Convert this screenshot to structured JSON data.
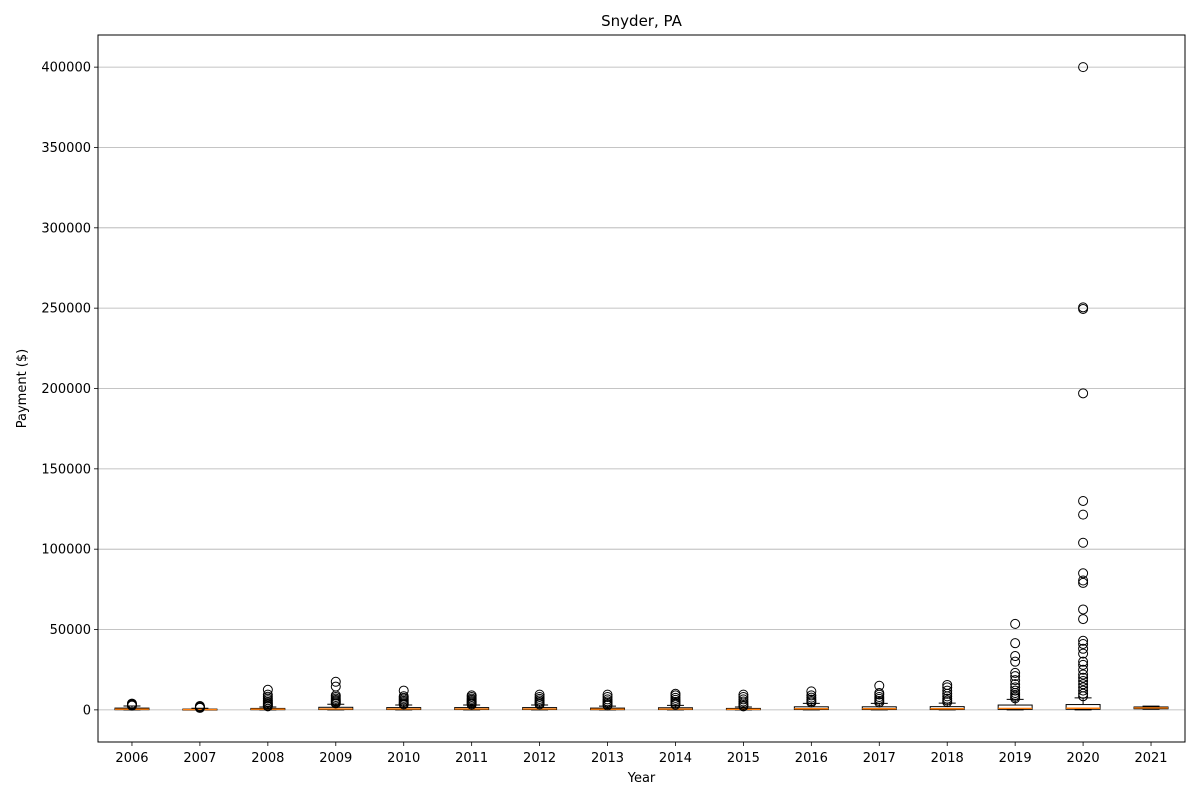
{
  "chart_data": {
    "type": "box",
    "title": "Snyder, PA",
    "xlabel": "Year",
    "ylabel": "Payment ($)",
    "ylim": [
      -20000,
      420000
    ],
    "yticks": [
      0,
      50000,
      100000,
      150000,
      200000,
      250000,
      300000,
      350000,
      400000
    ],
    "grid": "y",
    "colors": {
      "box": "#000000",
      "median": "#ff7f0e",
      "grid": "#b0b0b0"
    },
    "categories": [
      "2006",
      "2007",
      "2008",
      "2009",
      "2010",
      "2011",
      "2012",
      "2013",
      "2014",
      "2015",
      "2016",
      "2017",
      "2018",
      "2019",
      "2020",
      "2021"
    ],
    "boxes": [
      {
        "year": "2006",
        "q1": 100,
        "median": 400,
        "q3": 1100,
        "whisker_low": 0,
        "whisker_high": 2400,
        "outliers": [
          2600,
          2900,
          3200,
          3500,
          3900
        ]
      },
      {
        "year": "2007",
        "q1": 50,
        "median": 200,
        "q3": 500,
        "whisker_low": 0,
        "whisker_high": 1000,
        "outliers": [
          1200,
          1500,
          1900,
          2400
        ]
      },
      {
        "year": "2008",
        "q1": 100,
        "median": 400,
        "q3": 900,
        "whisker_low": 0,
        "whisker_high": 1800,
        "outliers": [
          2200,
          2800,
          3500,
          4200,
          5000,
          6000,
          7000,
          8200,
          9500,
          12500
        ]
      },
      {
        "year": "2009",
        "q1": 200,
        "median": 600,
        "q3": 1600,
        "whisker_low": 0,
        "whisker_high": 3500,
        "outliers": [
          4000,
          4700,
          5400,
          6100,
          7000,
          8000,
          9000,
          14500,
          17500
        ]
      },
      {
        "year": "2010",
        "q1": 200,
        "median": 600,
        "q3": 1400,
        "whisker_low": 0,
        "whisker_high": 3000,
        "outliers": [
          3400,
          4000,
          4800,
          5600,
          6500,
          7500,
          8500,
          12000
        ]
      },
      {
        "year": "2011",
        "q1": 200,
        "median": 600,
        "q3": 1400,
        "whisker_low": 0,
        "whisker_high": 3000,
        "outliers": [
          3300,
          4000,
          4700,
          5400,
          6200,
          7000,
          8000,
          9000
        ]
      },
      {
        "year": "2012",
        "q1": 200,
        "median": 600,
        "q3": 1400,
        "whisker_low": 0,
        "whisker_high": 3000,
        "outliers": [
          3400,
          4100,
          4900,
          5800,
          6800,
          8000,
          9500
        ]
      },
      {
        "year": "2013",
        "q1": 100,
        "median": 400,
        "q3": 1100,
        "whisker_low": 0,
        "whisker_high": 2300,
        "outliers": [
          2700,
          3400,
          4300,
          5300,
          6500,
          8000,
          9500
        ]
      },
      {
        "year": "2014",
        "q1": 200,
        "median": 500,
        "q3": 1300,
        "whisker_low": 0,
        "whisker_high": 2800,
        "outliers": [
          3200,
          4000,
          5000,
          6200,
          7500,
          9000,
          10000
        ]
      },
      {
        "year": "2015",
        "q1": 100,
        "median": 350,
        "q3": 900,
        "whisker_low": 0,
        "whisker_high": 1800,
        "outliers": [
          2200,
          3000,
          4000,
          5200,
          6500,
          8000,
          9500
        ]
      },
      {
        "year": "2016",
        "q1": 200,
        "median": 700,
        "q3": 1900,
        "whisker_low": 0,
        "whisker_high": 4000,
        "outliers": [
          4600,
          5400,
          6400,
          7600,
          9000,
          11500
        ]
      },
      {
        "year": "2017",
        "q1": 200,
        "median": 700,
        "q3": 1900,
        "whisker_low": 0,
        "whisker_high": 4000,
        "outliers": [
          4600,
          5600,
          6800,
          8000,
          9500,
          10500,
          15000
        ]
      },
      {
        "year": "2018",
        "q1": 200,
        "median": 700,
        "q3": 2000,
        "whisker_low": 0,
        "whisker_high": 4200,
        "outliers": [
          4800,
          5800,
          7000,
          8400,
          10000,
          12000,
          14000,
          15500
        ]
      },
      {
        "year": "2019",
        "q1": 300,
        "median": 900,
        "q3": 3000,
        "whisker_low": 0,
        "whisker_high": 6500,
        "outliers": [
          7200,
          8200,
          9300,
          10500,
          12000,
          14000,
          16000,
          18500,
          21000,
          23000,
          30000,
          33500,
          41500,
          53500
        ]
      },
      {
        "year": "2020",
        "q1": 400,
        "median": 1000,
        "q3": 3300,
        "whisker_low": 0,
        "whisker_high": 7500,
        "outliers": [
          8500,
          10000,
          12000,
          14000,
          16000,
          18000,
          20000,
          22000,
          25000,
          28000,
          30000,
          35000,
          38000,
          41000,
          43000,
          56500,
          62500,
          79000,
          80500,
          85000,
          104000,
          121500,
          130000,
          197000,
          249500,
          250500,
          400000
        ]
      },
      {
        "year": "2021",
        "q1": 700,
        "median": 1200,
        "q3": 1800,
        "whisker_low": 400,
        "whisker_high": 2300,
        "outliers": []
      }
    ]
  }
}
